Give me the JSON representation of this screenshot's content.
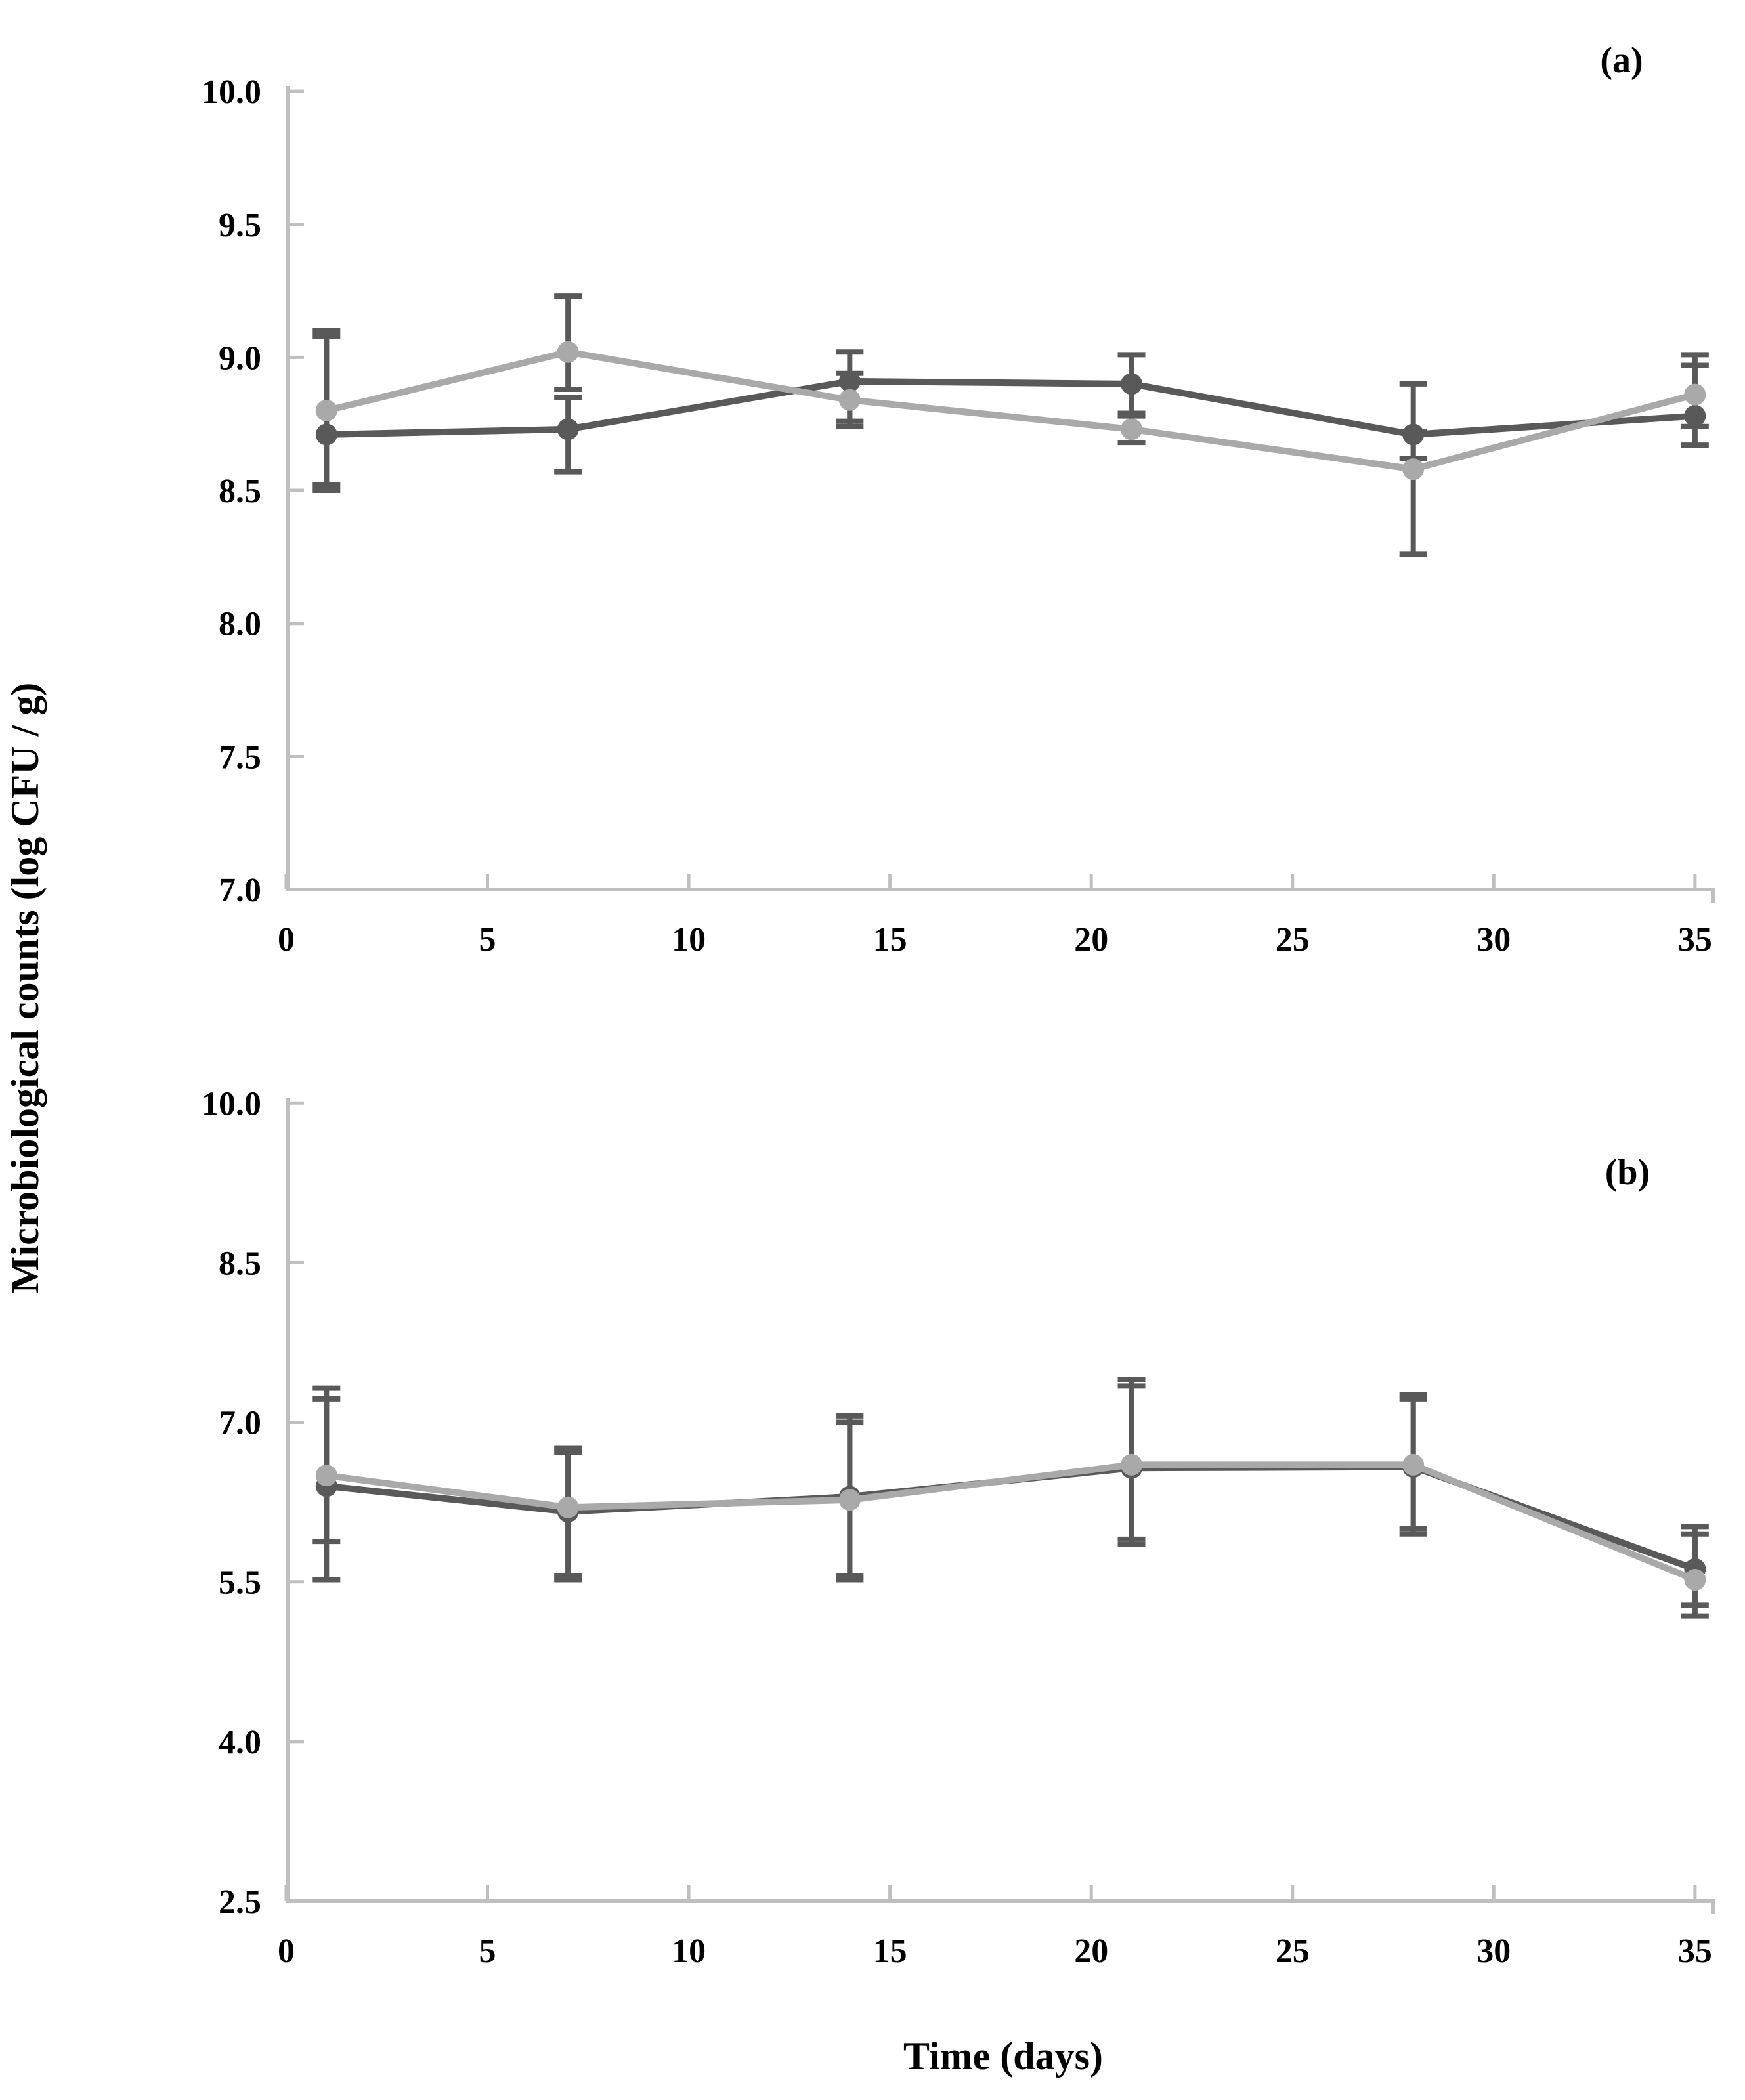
{
  "figure": {
    "panel_a_label": "(a)",
    "panel_b_label": "(b)",
    "x_axis_label": "Time (days)",
    "y_axis_label": "Microbiological counts (log CFU / g)"
  },
  "colors": {
    "series_dark": "#595959",
    "series_light": "#a9a9a9",
    "error_bar": "#595959",
    "axis": "#bfbfbf",
    "text": "#000000",
    "background": "#ffffff"
  },
  "chart_data": [
    {
      "type": "line",
      "panel": "a",
      "title": "",
      "xlabel": "Time (days)",
      "ylabel": "Microbiological counts (log CFU / g)",
      "grid": false,
      "legend": "none",
      "x": [
        1,
        7,
        14,
        21,
        28,
        35
      ],
      "xlim": [
        0,
        35.5
      ],
      "ylim": [
        7.0,
        10.0
      ],
      "x_tick_values": [
        0,
        5,
        10,
        15,
        20,
        25,
        30,
        35
      ],
      "x_tick_labels": [
        "0",
        "5",
        "10",
        "15",
        "20",
        "25",
        "30",
        "35"
      ],
      "y_tick_values": [
        10.0,
        9.5,
        9.0,
        8.5,
        8.0,
        7.5,
        7.0
      ],
      "y_tick_labels": [
        "10.0",
        "9.5",
        "9.0",
        "8.5",
        "8.0",
        "7.5",
        "7.0"
      ],
      "series": [
        {
          "name": "dark gray series",
          "color": "#595959",
          "marker": "circle",
          "values": [
            8.71,
            8.73,
            8.91,
            8.9,
            8.71,
            8.78
          ],
          "err_lo": [
            8.5,
            8.57,
            8.74,
            8.79,
            8.62,
            8.67
          ],
          "err_hi": [
            9.1,
            8.85,
            9.02,
            9.01,
            8.9,
            8.97
          ]
        },
        {
          "name": "light gray series",
          "color": "#a9a9a9",
          "marker": "circle",
          "values": [
            8.8,
            9.02,
            8.84,
            8.73,
            8.58,
            8.86
          ],
          "err_lo": [
            8.52,
            8.88,
            8.76,
            8.68,
            8.26,
            8.74
          ],
          "err_hi": [
            9.08,
            9.23,
            8.94,
            8.78,
            8.72,
            9.01
          ]
        }
      ]
    },
    {
      "type": "line",
      "panel": "b",
      "title": "",
      "xlabel": "Time (days)",
      "ylabel": "Microbiological counts (log CFU / g)",
      "grid": false,
      "legend": "none",
      "x": [
        1,
        7,
        14,
        21,
        28,
        35
      ],
      "xlim": [
        0,
        35.5
      ],
      "ylim": [
        2.5,
        10.0
      ],
      "x_tick_values": [
        0,
        5,
        10,
        15,
        20,
        25,
        30,
        35
      ],
      "x_tick_labels": [
        "0",
        "5",
        "10",
        "15",
        "20",
        "25",
        "30",
        "35"
      ],
      "y_tick_values": [
        10.0,
        8.5,
        7.0,
        5.5,
        4.0,
        2.5
      ],
      "y_tick_labels": [
        "10.0",
        "8.5",
        "7.0",
        "5.5",
        "4.0",
        "2.5"
      ],
      "series": [
        {
          "name": "dark gray series",
          "color": "#595959",
          "marker": "circle",
          "values": [
            6.4,
            6.16,
            6.3,
            6.57,
            6.58,
            5.62
          ],
          "err_lo": [
            5.88,
            5.56,
            5.56,
            5.9,
            6.0,
            5.28
          ],
          "err_hi": [
            7.22,
            6.72,
            7.0,
            7.34,
            7.22,
            6.02
          ]
        },
        {
          "name": "light gray series",
          "color": "#a9a9a9",
          "marker": "circle",
          "values": [
            6.5,
            6.2,
            6.27,
            6.6,
            6.6,
            5.52
          ],
          "err_lo": [
            5.52,
            5.52,
            5.52,
            5.85,
            5.95,
            5.18
          ],
          "err_hi": [
            7.32,
            6.76,
            7.06,
            7.4,
            7.26,
            5.95
          ]
        }
      ]
    }
  ]
}
